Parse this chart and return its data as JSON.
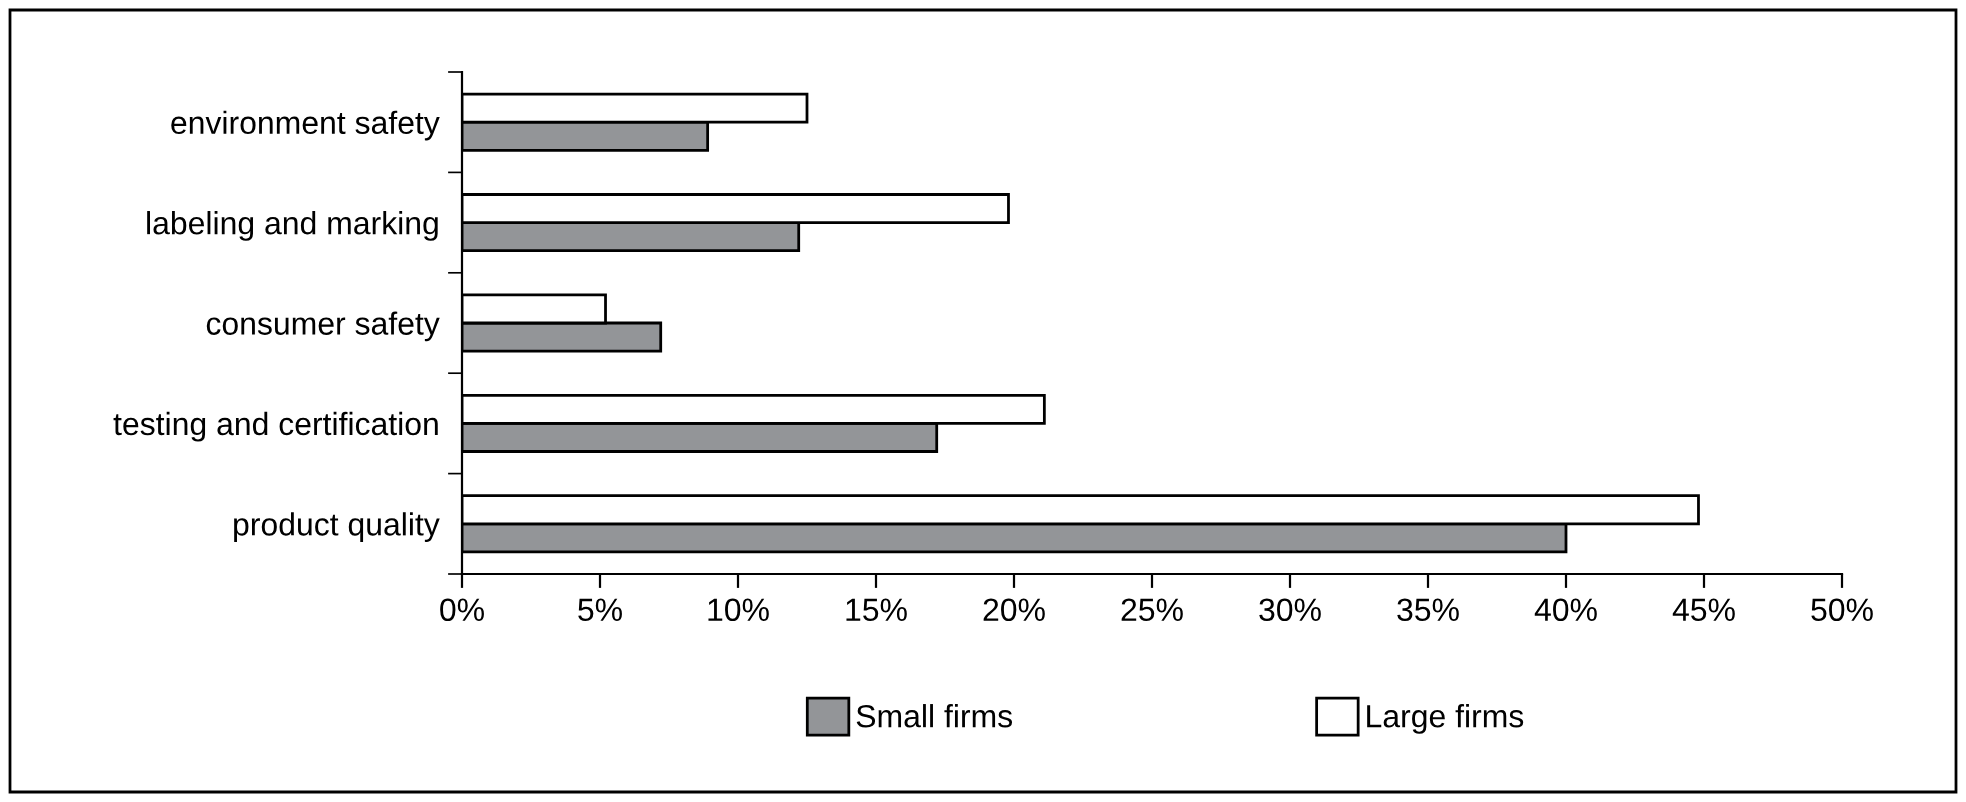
{
  "chart_data": {
    "type": "bar",
    "orientation": "horizontal",
    "categories": [
      "environment safety",
      "labeling and marking",
      "consumer safety",
      "testing and certification",
      "product quality"
    ],
    "series": [
      {
        "name": "Small firms",
        "color": "#939598",
        "values": [
          8.9,
          12.2,
          7.2,
          17.2,
          40.0
        ]
      },
      {
        "name": "Large firms",
        "color": "#ffffff",
        "values": [
          12.5,
          19.8,
          5.2,
          21.1,
          44.8
        ]
      }
    ],
    "xlim": [
      0,
      50
    ],
    "xticks": [
      {
        "value": 0,
        "label": "0%"
      },
      {
        "value": 5,
        "label": "5%"
      },
      {
        "value": 10,
        "label": "10%"
      },
      {
        "value": 15,
        "label": "15%"
      },
      {
        "value": 20,
        "label": "20%"
      },
      {
        "value": 25,
        "label": "25%"
      },
      {
        "value": 30,
        "label": "30%"
      },
      {
        "value": 35,
        "label": "35%"
      },
      {
        "value": 40,
        "label": "40%"
      },
      {
        "value": 45,
        "label": "45%"
      },
      {
        "value": 50,
        "label": "50%"
      }
    ],
    "legend": "bottom"
  }
}
